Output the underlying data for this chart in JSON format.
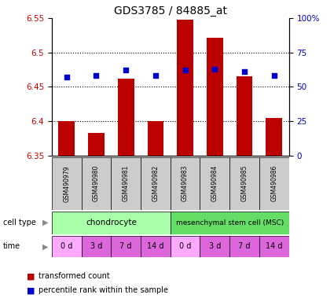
{
  "title": "GDS3785 / 84885_at",
  "samples": [
    "GSM490979",
    "GSM490980",
    "GSM490981",
    "GSM490982",
    "GSM490983",
    "GSM490984",
    "GSM490985",
    "GSM490986"
  ],
  "bar_values": [
    6.4,
    6.383,
    6.462,
    6.4,
    6.548,
    6.521,
    6.465,
    6.405
  ],
  "bar_bottom": 6.35,
  "dot_percentiles": [
    57,
    58,
    62,
    58,
    62,
    63,
    61,
    58
  ],
  "ylim_left": [
    6.35,
    6.55
  ],
  "ylim_right": [
    0,
    100
  ],
  "yticks_left": [
    6.35,
    6.4,
    6.45,
    6.5,
    6.55
  ],
  "yticks_right": [
    0,
    25,
    50,
    75,
    100
  ],
  "bar_color": "#bb0000",
  "dot_color": "#0000cc",
  "cell_type_labels": [
    "chondrocyte",
    "mesenchymal stem cell (MSC)"
  ],
  "cell_type_colors": [
    "#aaffaa",
    "#66dd66"
  ],
  "time_labels": [
    "0 d",
    "3 d",
    "7 d",
    "14 d",
    "0 d",
    "3 d",
    "7 d",
    "14 d"
  ],
  "time_colors": [
    "#ffaaff",
    "#dd66dd",
    "#dd66dd",
    "#dd66dd",
    "#ffaaff",
    "#dd66dd",
    "#dd66dd",
    "#dd66dd"
  ],
  "label_cell_type": "cell type",
  "label_time": "time",
  "legend_bar": "transformed count",
  "legend_dot": "percentile rank within the sample",
  "tick_label_color_left": "#cc0000",
  "tick_label_color_right": "#0000bb",
  "sample_box_color": "#cccccc",
  "arrow_color": "#888888"
}
